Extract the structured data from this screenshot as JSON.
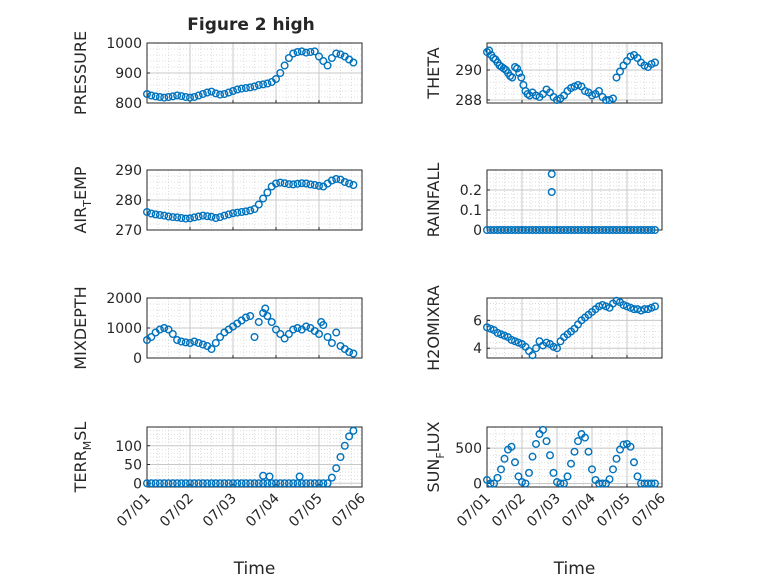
{
  "title": "Figure 2 high",
  "xlabel": "Time",
  "xticks": [
    "07/01",
    "07/02",
    "07/03",
    "07/04",
    "07/05",
    "07/06"
  ],
  "marker_color": "#0072BD",
  "chart_data": [
    {
      "type": "scatter",
      "ylabel": "PRESSURE",
      "ylim": [
        800,
        1000
      ],
      "yticks": [
        800,
        900,
        1000
      ],
      "x": [
        0.0,
        0.1,
        0.2,
        0.3,
        0.4,
        0.5,
        0.6,
        0.7,
        0.8,
        0.9,
        1.0,
        1.1,
        1.2,
        1.3,
        1.4,
        1.5,
        1.6,
        1.7,
        1.8,
        1.9,
        2.0,
        2.1,
        2.2,
        2.3,
        2.4,
        2.5,
        2.6,
        2.7,
        2.8,
        2.9,
        3.0,
        3.1,
        3.2,
        3.3,
        3.4,
        3.5,
        3.6,
        3.7,
        3.8,
        3.9,
        4.0,
        4.1,
        4.2,
        4.3,
        4.4,
        4.5,
        4.6,
        4.7,
        4.8
      ],
      "y": [
        830,
        825,
        822,
        820,
        818,
        820,
        822,
        825,
        823,
        820,
        818,
        820,
        825,
        830,
        835,
        838,
        832,
        828,
        830,
        835,
        840,
        845,
        848,
        850,
        852,
        855,
        860,
        862,
        865,
        870,
        880,
        900,
        925,
        950,
        965,
        970,
        972,
        968,
        970,
        972,
        955,
        940,
        925,
        950,
        965,
        962,
        955,
        945,
        935
      ]
    },
    {
      "type": "scatter",
      "ylabel": "THETA",
      "ylim": [
        287.8,
        291.8
      ],
      "yticks": [
        288,
        290
      ],
      "x": [
        0.0,
        0.06,
        0.12,
        0.18,
        0.24,
        0.3,
        0.36,
        0.42,
        0.48,
        0.54,
        0.6,
        0.66,
        0.72,
        0.8,
        0.86,
        0.92,
        0.98,
        1.04,
        1.1,
        1.16,
        1.22,
        1.3,
        1.4,
        1.5,
        1.6,
        1.7,
        1.8,
        1.9,
        2.0,
        2.1,
        2.2,
        2.3,
        2.4,
        2.5,
        2.6,
        2.7,
        2.8,
        2.9,
        3.0,
        3.1,
        3.2,
        3.3,
        3.4,
        3.5,
        3.6,
        3.7,
        3.8,
        3.9,
        4.0,
        4.1,
        4.2,
        4.3,
        4.4,
        4.5,
        4.6,
        4.7,
        4.8
      ],
      "y": [
        291.2,
        291.3,
        291.0,
        290.8,
        290.7,
        290.5,
        290.3,
        290.2,
        290.1,
        290.0,
        289.8,
        289.6,
        289.5,
        290.2,
        290.1,
        289.8,
        289.5,
        289.0,
        288.6,
        288.4,
        288.3,
        288.5,
        288.3,
        288.2,
        288.4,
        288.7,
        288.5,
        288.2,
        288.0,
        288.1,
        288.3,
        288.6,
        288.8,
        288.9,
        289.0,
        288.9,
        288.6,
        288.5,
        288.3,
        288.4,
        288.6,
        288.2,
        288.0,
        288.0,
        288.1,
        289.5,
        289.9,
        290.3,
        290.6,
        290.9,
        291.0,
        290.8,
        290.5,
        290.3,
        290.2,
        290.4,
        290.5
      ]
    },
    {
      "type": "scatter",
      "ylabel": "AIR_TEMP",
      "ylim": [
        270,
        290
      ],
      "yticks": [
        270,
        280,
        290
      ],
      "x": [
        0.0,
        0.1,
        0.2,
        0.3,
        0.4,
        0.5,
        0.6,
        0.7,
        0.8,
        0.9,
        1.0,
        1.1,
        1.2,
        1.3,
        1.4,
        1.5,
        1.6,
        1.7,
        1.8,
        1.9,
        2.0,
        2.1,
        2.2,
        2.3,
        2.4,
        2.5,
        2.6,
        2.7,
        2.8,
        2.9,
        3.0,
        3.1,
        3.2,
        3.3,
        3.4,
        3.5,
        3.6,
        3.7,
        3.8,
        3.9,
        4.0,
        4.1,
        4.2,
        4.3,
        4.4,
        4.5,
        4.6,
        4.7,
        4.8
      ],
      "y": [
        276.0,
        275.5,
        275.2,
        275.0,
        274.8,
        274.5,
        274.3,
        274.2,
        274.0,
        273.8,
        273.9,
        274.2,
        274.5,
        274.8,
        274.6,
        274.4,
        274.0,
        274.3,
        274.8,
        275.2,
        275.6,
        275.8,
        276.0,
        276.2,
        276.5,
        277.0,
        278.5,
        280.5,
        282.5,
        284.5,
        285.5,
        285.8,
        285.6,
        285.3,
        285.2,
        285.4,
        285.6,
        285.5,
        285.2,
        285.0,
        284.7,
        284.5,
        285.5,
        286.5,
        287.0,
        286.8,
        286.0,
        285.5,
        285.0
      ]
    },
    {
      "type": "scatter",
      "ylabel": "RAINFALL",
      "ylim": [
        0,
        0.3
      ],
      "yticks": [
        0,
        0.1,
        0.2
      ],
      "x": [
        0.0,
        0.1,
        0.2,
        0.3,
        0.4,
        0.5,
        0.6,
        0.7,
        0.8,
        0.9,
        1.0,
        1.1,
        1.2,
        1.3,
        1.4,
        1.5,
        1.6,
        1.7,
        1.8,
        1.9,
        2.0,
        2.1,
        2.2,
        2.3,
        2.4,
        2.5,
        2.6,
        2.7,
        2.8,
        2.9,
        3.0,
        3.1,
        3.2,
        3.3,
        3.4,
        3.5,
        3.6,
        3.7,
        3.8,
        3.9,
        4.0,
        4.1,
        4.2,
        4.3,
        4.4,
        4.5,
        4.6,
        4.7,
        4.8,
        1.85,
        1.85
      ],
      "y": [
        0,
        0,
        0,
        0,
        0,
        0,
        0,
        0,
        0,
        0,
        0,
        0,
        0,
        0,
        0,
        0,
        0,
        0,
        0,
        0,
        0,
        0,
        0,
        0,
        0,
        0,
        0,
        0,
        0,
        0,
        0,
        0,
        0,
        0,
        0,
        0,
        0,
        0,
        0,
        0,
        0,
        0,
        0,
        0,
        0,
        0,
        0,
        0,
        0,
        0.28,
        0.19
      ]
    },
    {
      "type": "scatter",
      "ylabel": "MIXDEPTH",
      "ylim": [
        0,
        2000
      ],
      "yticks": [
        0,
        1000,
        2000
      ],
      "x": [
        0.0,
        0.1,
        0.2,
        0.3,
        0.4,
        0.5,
        0.6,
        0.7,
        0.8,
        0.9,
        1.0,
        1.1,
        1.2,
        1.3,
        1.4,
        1.5,
        1.6,
        1.7,
        1.8,
        1.9,
        2.0,
        2.1,
        2.2,
        2.3,
        2.4,
        2.5,
        2.6,
        2.7,
        2.75,
        2.8,
        2.9,
        3.0,
        3.1,
        3.2,
        3.3,
        3.4,
        3.5,
        3.6,
        3.7,
        3.8,
        3.9,
        4.0,
        4.05,
        4.1,
        4.2,
        4.3,
        4.4,
        4.5,
        4.6,
        4.7,
        4.8
      ],
      "y": [
        600,
        700,
        850,
        950,
        1000,
        950,
        800,
        600,
        550,
        520,
        500,
        550,
        500,
        450,
        400,
        300,
        500,
        700,
        850,
        950,
        1050,
        1150,
        1250,
        1350,
        1400,
        700,
        1200,
        1500,
        1650,
        1400,
        1200,
        950,
        800,
        650,
        800,
        950,
        1000,
        950,
        1050,
        1000,
        900,
        800,
        1200,
        1100,
        700,
        500,
        850,
        400,
        300,
        200,
        150
      ]
    },
    {
      "type": "scatter",
      "ylabel": "H2OMIXRA",
      "ylim": [
        3.3,
        7.6
      ],
      "yticks": [
        4,
        6
      ],
      "x": [
        0.0,
        0.1,
        0.2,
        0.3,
        0.4,
        0.5,
        0.6,
        0.7,
        0.8,
        0.9,
        1.0,
        1.1,
        1.2,
        1.3,
        1.4,
        1.5,
        1.6,
        1.7,
        1.8,
        1.9,
        2.0,
        2.1,
        2.2,
        2.3,
        2.4,
        2.5,
        2.6,
        2.7,
        2.8,
        2.9,
        3.0,
        3.1,
        3.2,
        3.3,
        3.4,
        3.5,
        3.6,
        3.7,
        3.8,
        3.9,
        4.0,
        4.1,
        4.2,
        4.3,
        4.4,
        4.5,
        4.6,
        4.7,
        4.8
      ],
      "y": [
        5.5,
        5.4,
        5.3,
        5.1,
        5.0,
        4.9,
        4.8,
        4.6,
        4.5,
        4.4,
        4.3,
        4.1,
        3.8,
        3.5,
        4.0,
        4.5,
        4.2,
        4.4,
        4.3,
        4.1,
        4.0,
        4.5,
        4.8,
        5.0,
        5.2,
        5.4,
        5.7,
        6.0,
        6.2,
        6.4,
        6.6,
        6.8,
        7.0,
        7.1,
        7.0,
        6.9,
        7.2,
        7.4,
        7.3,
        7.1,
        7.0,
        6.9,
        6.8,
        6.8,
        6.7,
        6.8,
        6.8,
        6.9,
        7.0
      ]
    },
    {
      "type": "scatter",
      "ylabel": "TERR_MSL",
      "ylim": [
        -10,
        150
      ],
      "yticks": [
        0,
        50,
        100
      ],
      "x": [
        0.0,
        0.1,
        0.2,
        0.3,
        0.4,
        0.5,
        0.6,
        0.7,
        0.8,
        0.9,
        1.0,
        1.1,
        1.2,
        1.3,
        1.4,
        1.5,
        1.6,
        1.7,
        1.8,
        1.9,
        2.0,
        2.1,
        2.2,
        2.3,
        2.4,
        2.5,
        2.6,
        2.7,
        2.8,
        2.9,
        3.0,
        3.1,
        3.2,
        3.3,
        3.4,
        3.5,
        3.6,
        3.7,
        3.8,
        3.9,
        4.0,
        4.1,
        4.2,
        4.3,
        4.4,
        4.5,
        4.6,
        4.7,
        4.8,
        2.7,
        2.85,
        3.55
      ],
      "y": [
        0,
        0,
        0,
        0,
        0,
        0,
        0,
        0,
        0,
        0,
        0,
        0,
        0,
        0,
        0,
        0,
        0,
        0,
        0,
        0,
        0,
        0,
        0,
        0,
        0,
        0,
        0,
        0,
        0,
        0,
        0,
        0,
        0,
        0,
        0,
        0,
        0,
        0,
        0,
        0,
        0,
        0,
        0,
        15,
        40,
        70,
        100,
        125,
        140,
        20,
        18,
        18
      ]
    },
    {
      "type": "scatter",
      "ylabel": "SUN_FLUX",
      "ylim": [
        -50,
        800
      ],
      "yticks": [
        0,
        500
      ],
      "x": [
        0.0,
        0.1,
        0.2,
        0.3,
        0.4,
        0.5,
        0.6,
        0.7,
        0.8,
        0.9,
        1.0,
        1.1,
        1.2,
        1.3,
        1.4,
        1.5,
        1.6,
        1.7,
        1.8,
        1.9,
        2.0,
        2.1,
        2.2,
        2.3,
        2.4,
        2.5,
        2.6,
        2.7,
        2.8,
        2.9,
        3.0,
        3.1,
        3.2,
        3.3,
        3.4,
        3.5,
        3.6,
        3.7,
        3.8,
        3.9,
        4.0,
        4.1,
        4.2,
        4.3,
        4.4,
        4.5,
        4.6,
        4.7,
        4.8
      ],
      "y": [
        50,
        0,
        0,
        80,
        200,
        350,
        480,
        520,
        300,
        100,
        20,
        0,
        150,
        380,
        560,
        700,
        760,
        600,
        400,
        150,
        20,
        0,
        0,
        100,
        280,
        450,
        600,
        700,
        650,
        450,
        200,
        50,
        0,
        0,
        0,
        60,
        200,
        350,
        480,
        550,
        560,
        520,
        300,
        100,
        0,
        0,
        0,
        0,
        0
      ]
    }
  ]
}
